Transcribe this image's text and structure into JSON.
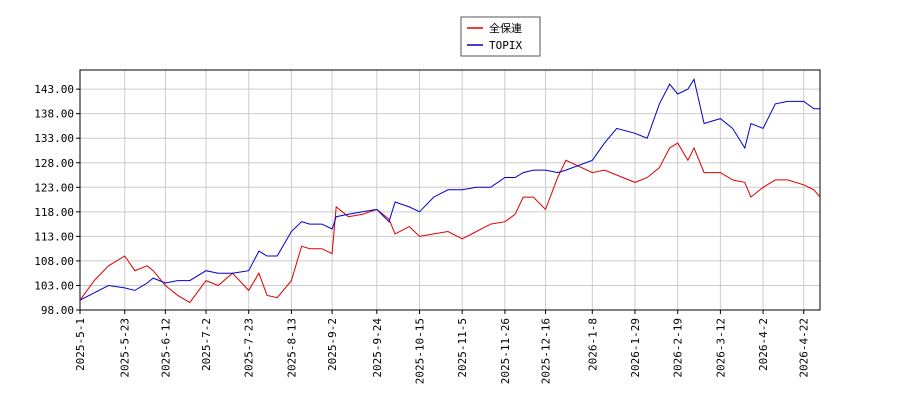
{
  "chart_data": {
    "type": "line",
    "x": [
      "2025-5-1",
      "2025-5-8",
      "2025-5-15",
      "2025-5-23",
      "2025-5-28",
      "2025-6-3",
      "2025-6-6",
      "2025-6-12",
      "2025-6-18",
      "2025-6-24",
      "2025-7-2",
      "2025-7-8",
      "2025-7-15",
      "2025-7-23",
      "2025-7-28",
      "2025-8-1",
      "2025-8-6",
      "2025-8-13",
      "2025-8-18",
      "2025-8-22",
      "2025-8-28",
      "2025-9-2",
      "2025-9-4",
      "2025-9-10",
      "2025-9-17",
      "2025-9-24",
      "2025-9-30",
      "2025-10-3",
      "2025-10-10",
      "2025-10-15",
      "2025-10-22",
      "2025-10-29",
      "2025-11-5",
      "2025-11-12",
      "2025-11-19",
      "2025-11-26",
      "2025-12-1",
      "2025-12-5",
      "2025-12-10",
      "2025-12-16",
      "2025-12-22",
      "2025-12-26",
      "2026-1-8",
      "2026-1-14",
      "2026-1-20",
      "2026-1-29",
      "2026-2-4",
      "2026-2-10",
      "2026-2-15",
      "2026-2-19",
      "2026-2-24",
      "2026-2-27",
      "2026-3-4",
      "2026-3-12",
      "2026-3-18",
      "2026-3-24",
      "2026-3-27",
      "2026-4-2",
      "2026-4-8",
      "2026-4-14",
      "2026-4-22",
      "2026-4-27",
      "2026-4-30"
    ],
    "series": [
      {
        "name": "全保連",
        "color": "#dd0000",
        "values": [
          100,
          104,
          107,
          109,
          106,
          107,
          106,
          103,
          101,
          99.5,
          104,
          103,
          105.5,
          102,
          105.5,
          101,
          100.5,
          104,
          111,
          110.5,
          110.5,
          109.5,
          119,
          117,
          117.5,
          118.5,
          116.5,
          113.5,
          115,
          113,
          113.5,
          114,
          112.5,
          114,
          115.5,
          116,
          117.5,
          121,
          121,
          118.5,
          125,
          128.5,
          126,
          126.5,
          125.5,
          124,
          125,
          127,
          131,
          132,
          128.5,
          131,
          126,
          126,
          124.5,
          124,
          121,
          123,
          124.5,
          124.5,
          123.5,
          122.5,
          121
        ]
      },
      {
        "name": "TOPIX",
        "color": "#0000cc",
        "values": [
          100,
          101.5,
          103,
          102.5,
          102,
          103.5,
          104.5,
          103.5,
          104,
          104,
          106,
          105.5,
          105.5,
          106,
          110,
          109,
          109,
          114,
          116,
          115.5,
          115.5,
          114.5,
          117,
          117.5,
          118,
          118.5,
          116,
          120,
          119,
          118,
          121,
          122.5,
          122.5,
          123,
          123,
          125,
          125,
          126,
          126.5,
          126.5,
          126,
          126.5,
          128.5,
          132,
          135,
          134,
          133,
          140,
          144,
          142,
          143,
          145,
          136,
          137,
          135,
          131,
          136,
          135,
          140,
          140.5,
          140.5,
          139,
          139
        ]
      }
    ],
    "xlim": [
      "2025-5-1",
      "2026-4-30"
    ],
    "xticks": [
      "2025-5-1",
      "2025-5-23",
      "2025-6-12",
      "2025-7-2",
      "2025-7-23",
      "2025-8-13",
      "2025-9-2",
      "2025-9-24",
      "2025-10-15",
      "2025-11-5",
      "2025-11-26",
      "2025-12-16",
      "2026-1-8",
      "2026-1-29",
      "2026-2-19",
      "2026-3-12",
      "2026-4-2",
      "2026-4-22"
    ],
    "ylim": [
      98,
      146.9
    ],
    "yticks": [
      {
        "value": 98,
        "label": "98.00"
      },
      {
        "value": 103,
        "label": "103.00"
      },
      {
        "value": 108,
        "label": "108.00"
      },
      {
        "value": 113,
        "label": "113.00"
      },
      {
        "value": 118,
        "label": "118.00"
      },
      {
        "value": 123,
        "label": "123.00"
      },
      {
        "value": 128,
        "label": "128.00"
      },
      {
        "value": 133,
        "label": "133.00"
      },
      {
        "value": 138,
        "label": "138.00"
      },
      {
        "value": 143,
        "label": "143.00"
      }
    ],
    "grid": true,
    "legend": "top"
  }
}
